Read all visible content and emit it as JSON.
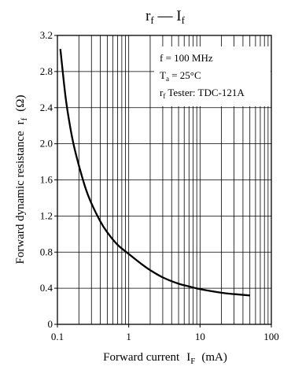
{
  "chart_data": {
    "type": "line",
    "title": {
      "main_1": "r",
      "main_1_sub": "f",
      "dash": " — ",
      "main_2": "I",
      "main_2_sub": "f"
    },
    "xlabel": {
      "text": "Forward current",
      "symbol": "I",
      "symbol_sub": "F",
      "unit": "(mA)"
    },
    "ylabel": {
      "text": "Forward dynamic resistance",
      "symbol": "r",
      "symbol_sub": "f",
      "unit": "(Ω)"
    },
    "x_scale": "log",
    "xlim": [
      0.1,
      100
    ],
    "ylim": [
      0,
      3.2
    ],
    "x_ticks": [
      0.1,
      1,
      10,
      100
    ],
    "x_tick_labels": [
      "0.1",
      "1",
      "10",
      "100"
    ],
    "y_ticks": [
      0,
      0.4,
      0.8,
      1.2,
      1.6,
      2.0,
      2.4,
      2.8,
      3.2
    ],
    "y_tick_labels": [
      "0",
      "0.4",
      "0.8",
      "1.2",
      "1.6",
      "2.0",
      "2.4",
      "2.8",
      "3.2"
    ],
    "grid": true,
    "legend": {
      "placement": "top-right",
      "lines": [
        {
          "text": "f = 100 MHz"
        },
        {
          "sym": "T",
          "sub": "a",
          "text": " = 25°C"
        },
        {
          "sym": "r",
          "sub": "f",
          "text": " Tester: TDC-121A"
        }
      ]
    },
    "series": [
      {
        "x": [
          0.11,
          0.13,
          0.15,
          0.17,
          0.2,
          0.25,
          0.3,
          0.4,
          0.5,
          0.7,
          1,
          1.5,
          2,
          3,
          5,
          7,
          10,
          20,
          30,
          50
        ],
        "y": [
          3.05,
          2.52,
          2.2,
          1.98,
          1.76,
          1.5,
          1.34,
          1.14,
          1.02,
          0.88,
          0.78,
          0.67,
          0.6,
          0.52,
          0.45,
          0.42,
          0.39,
          0.35,
          0.335,
          0.32
        ]
      }
    ]
  }
}
